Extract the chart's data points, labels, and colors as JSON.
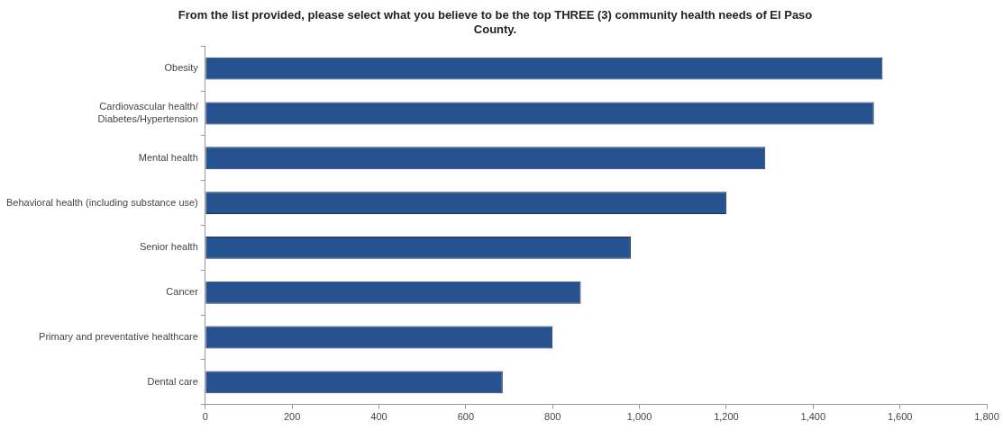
{
  "chart_data": {
    "type": "bar",
    "orientation": "horizontal",
    "title": "From the list provided, please select what you believe to be the top THREE (3) community health needs of El Paso\nCounty.",
    "categories": [
      "Obesity",
      "Cardiovascular health/\nDiabetes/Hypertension",
      "Mental health",
      "Behavioral health (including substance use)",
      "Senior health",
      "Cancer",
      "Primary and preventative healthcare",
      "Dental care"
    ],
    "values": [
      1560,
      1540,
      1290,
      1200,
      980,
      865,
      800,
      685
    ],
    "color": "#265390",
    "xlim": [
      0,
      1800
    ],
    "xticks": [
      {
        "value": 0,
        "label": "0"
      },
      {
        "value": 200,
        "label": "200"
      },
      {
        "value": 400,
        "label": "400"
      },
      {
        "value": 600,
        "label": "600"
      },
      {
        "value": 800,
        "label": "800"
      },
      {
        "value": 1000,
        "label": "1,000"
      },
      {
        "value": 1200,
        "label": "1,200"
      },
      {
        "value": 1400,
        "label": "1,400"
      },
      {
        "value": 1600,
        "label": "1,600"
      },
      {
        "value": 1800,
        "label": "1,800"
      }
    ],
    "grid": false,
    "legend": false
  }
}
